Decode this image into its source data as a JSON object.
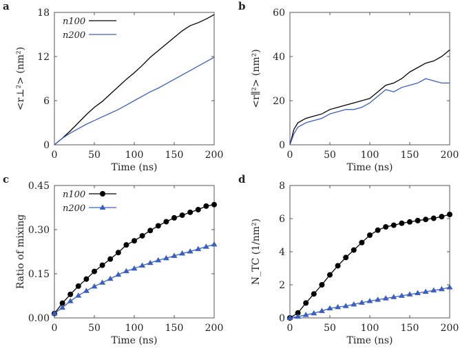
{
  "chart_data": [
    {
      "panel": "a",
      "type": "line",
      "xlabel": "Time (ns)",
      "ylabel": "<r⊥²> (nm²)",
      "xlim": [
        0,
        200
      ],
      "ylim": [
        0,
        18
      ],
      "xticks": [
        0,
        50,
        100,
        150,
        200
      ],
      "yticks": [
        0,
        6,
        12,
        18
      ],
      "legend": "top-left",
      "x": [
        0,
        10,
        20,
        30,
        40,
        50,
        60,
        70,
        80,
        90,
        100,
        110,
        120,
        130,
        140,
        150,
        160,
        170,
        180,
        190,
        200
      ],
      "series": [
        {
          "name": "n100",
          "color": "#000000",
          "marker": "none",
          "values": [
            0,
            0.9,
            1.9,
            3.0,
            4.1,
            5.1,
            5.9,
            6.9,
            7.9,
            8.9,
            9.8,
            10.8,
            11.9,
            12.8,
            13.7,
            14.6,
            15.5,
            16.2,
            16.6,
            17.1,
            17.7
          ]
        },
        {
          "name": "n200",
          "color": "#3a5fc0",
          "marker": "none",
          "values": [
            0,
            0.9,
            1.6,
            2.2,
            2.8,
            3.3,
            3.8,
            4.3,
            4.8,
            5.4,
            6.0,
            6.6,
            7.2,
            7.7,
            8.3,
            8.9,
            9.5,
            10.1,
            10.7,
            11.3,
            11.9
          ]
        }
      ]
    },
    {
      "panel": "b",
      "type": "line",
      "xlabel": "Time (ns)",
      "ylabel": "<r∥²> (nm²)",
      "xlim": [
        0,
        200
      ],
      "ylim": [
        0,
        60
      ],
      "xticks": [
        0,
        50,
        100,
        150,
        200
      ],
      "yticks": [
        0,
        20,
        40,
        60
      ],
      "x": [
        0,
        5,
        10,
        20,
        30,
        40,
        50,
        60,
        70,
        80,
        90,
        100,
        110,
        120,
        130,
        140,
        150,
        160,
        170,
        180,
        190,
        200
      ],
      "series": [
        {
          "name": "n100",
          "color": "#000000",
          "marker": "none",
          "values": [
            0,
            7,
            10,
            12,
            13,
            14,
            16,
            17,
            18,
            19,
            20,
            21,
            24,
            27,
            28,
            30,
            33,
            35,
            37,
            38,
            40,
            43
          ]
        },
        {
          "name": "n200",
          "color": "#3a5fc0",
          "marker": "none",
          "values": [
            0,
            5,
            8,
            10,
            11,
            12,
            14,
            15,
            16,
            16,
            17,
            19,
            22,
            25,
            24,
            26,
            27,
            28,
            30,
            29,
            28,
            28
          ]
        }
      ]
    },
    {
      "panel": "c",
      "type": "line",
      "xlabel": "Time (ns)",
      "ylabel": "Ratio of mixing",
      "xlim": [
        0,
        200
      ],
      "ylim": [
        0,
        0.45
      ],
      "xticks": [
        0,
        50,
        100,
        150,
        200
      ],
      "yticks": [
        "0.00",
        "0.15",
        "0.30",
        "0.45"
      ],
      "legend": "top-left",
      "x": [
        0,
        10,
        20,
        30,
        40,
        50,
        60,
        70,
        80,
        90,
        100,
        110,
        120,
        130,
        140,
        150,
        160,
        170,
        180,
        190,
        200
      ],
      "series": [
        {
          "name": "n100",
          "color": "#000000",
          "marker": "circle",
          "values": [
            0.015,
            0.05,
            0.08,
            0.108,
            0.132,
            0.158,
            0.179,
            0.2,
            0.222,
            0.248,
            0.262,
            0.279,
            0.297,
            0.313,
            0.327,
            0.34,
            0.349,
            0.359,
            0.368,
            0.38,
            0.385
          ]
        },
        {
          "name": "n200",
          "color": "#3a5fc0",
          "marker": "triangle",
          "values": [
            0.015,
            0.035,
            0.057,
            0.076,
            0.092,
            0.107,
            0.12,
            0.133,
            0.147,
            0.159,
            0.168,
            0.178,
            0.187,
            0.196,
            0.203,
            0.211,
            0.219,
            0.226,
            0.234,
            0.242,
            0.25
          ]
        }
      ]
    },
    {
      "panel": "d",
      "type": "line",
      "xlabel": "Time (ns)",
      "ylabel": "N_TC (1/nm²)",
      "xlim": [
        0,
        200
      ],
      "ylim": [
        0,
        8
      ],
      "xticks": [
        0,
        50,
        100,
        150,
        200
      ],
      "yticks": [
        0,
        2,
        4,
        6,
        8
      ],
      "x": [
        0,
        10,
        20,
        30,
        40,
        50,
        60,
        70,
        80,
        90,
        100,
        110,
        120,
        130,
        140,
        150,
        160,
        170,
        180,
        190,
        200
      ],
      "series": [
        {
          "name": "n100",
          "color": "#000000",
          "marker": "circle",
          "values": [
            0,
            0.3,
            0.9,
            1.45,
            2.0,
            2.6,
            3.15,
            3.65,
            4.1,
            4.55,
            5.0,
            5.3,
            5.5,
            5.6,
            5.72,
            5.8,
            5.88,
            5.95,
            6.02,
            6.12,
            6.25
          ]
        },
        {
          "name": "n200",
          "color": "#3a5fc0",
          "marker": "triangle",
          "values": [
            0,
            0.08,
            0.18,
            0.28,
            0.42,
            0.58,
            0.65,
            0.72,
            0.82,
            0.92,
            1.02,
            1.1,
            1.18,
            1.26,
            1.34,
            1.42,
            1.5,
            1.58,
            1.66,
            1.74,
            1.85
          ]
        }
      ]
    }
  ]
}
